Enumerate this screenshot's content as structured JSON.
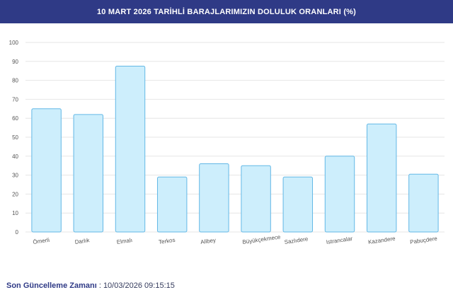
{
  "header": {
    "title": "10 MART 2026 TARİHLİ BARAJLARIMIZIN DOLULUK ORANLARI (%)"
  },
  "footer": {
    "label": "Son Güncelleme Zamanı",
    "separator": " : ",
    "value": "10/03/2026 09:15:15"
  },
  "colors": {
    "header_bg": "#2f3a86",
    "bar_fill": "#cdeefc",
    "bar_stroke": "#63b8e6",
    "grid": "#e6e6e6"
  },
  "chart_data": {
    "type": "bar",
    "title": "10 MART 2026 TARİHLİ BARAJLARIMIZIN DOLULUK ORANLARI (%)",
    "xlabel": "",
    "ylabel": "",
    "categories": [
      "Ömerli",
      "Darlık",
      "Elmalı",
      "Terkos",
      "Alibey",
      "Büyükçekmece",
      "Sazlıdere",
      "Istrancalar",
      "Kazandere",
      "Pabuçdere"
    ],
    "values": [
      65,
      62,
      87.5,
      29,
      36,
      35,
      29,
      40,
      57,
      30.5
    ],
    "ylim": [
      0,
      100
    ],
    "yticks": [
      "0",
      "10",
      "20",
      "30",
      "40",
      "50",
      "60",
      "70",
      "80",
      "90",
      "100"
    ],
    "grid": true,
    "legend": "none"
  }
}
